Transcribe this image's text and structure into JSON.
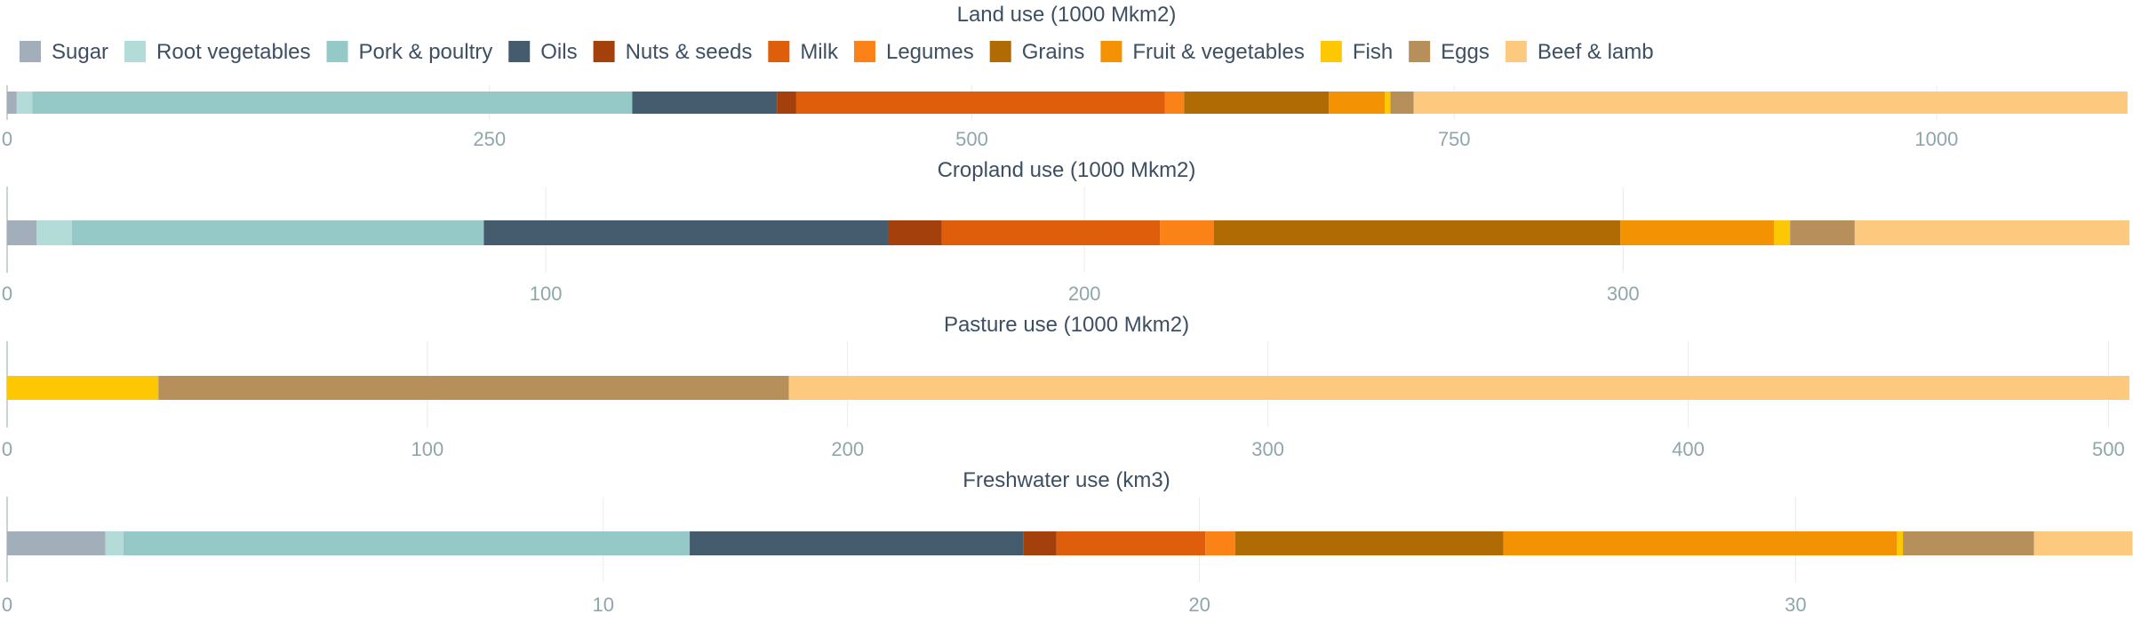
{
  "chart_data": {
    "type": "bar",
    "orientation": "horizontal",
    "stacked": true,
    "legend_position": "top-left",
    "grid": true,
    "categories": [
      "Sugar",
      "Root vegetables",
      "Pork & poultry",
      "Oils",
      "Nuts & seeds",
      "Milk",
      "Legumes",
      "Grains",
      "Fruit & vegetables",
      "Fish",
      "Eggs",
      "Beef & lamb"
    ],
    "colors": [
      "#a3aebb",
      "#b3dbd8",
      "#95c9c7",
      "#455b6e",
      "#a3400b",
      "#df5e0c",
      "#fb8217",
      "#b06b04",
      "#f39304",
      "#fdc704",
      "#b68f5a",
      "#fdc97e"
    ],
    "panels": [
      {
        "title": "Land use (1000 Mkm2)",
        "xlim": [
          0,
          1100
        ],
        "ticks": [
          0,
          250,
          500,
          750,
          1000
        ],
        "values": [
          5,
          8,
          311,
          75,
          10,
          191,
          10,
          75,
          29,
          3,
          12,
          370
        ]
      },
      {
        "title": "Cropland use (1000 Mkm2)",
        "xlim": [
          0,
          394
        ],
        "ticks": [
          0,
          100,
          200,
          300
        ],
        "values": [
          5.5,
          6.5,
          76.5,
          75,
          10,
          40.5,
          10,
          75.5,
          28.5,
          3,
          12,
          51
        ]
      },
      {
        "title": "Pasture use (1000 Mkm2)",
        "xlim": [
          0,
          505
        ],
        "ticks": [
          0,
          100,
          200,
          300,
          400,
          500
        ],
        "values": [
          0,
          0,
          0,
          0,
          0,
          0,
          0,
          0,
          0,
          36,
          150,
          319
        ]
      },
      {
        "title": "Freshwater use (km3)",
        "xlim": [
          0,
          35.6
        ],
        "ticks": [
          0,
          10,
          20,
          30
        ],
        "values": [
          1.65,
          0.3,
          9.5,
          5.6,
          0.55,
          2.5,
          0.5,
          4.5,
          6.6,
          0.1,
          2.2,
          1.65
        ]
      }
    ]
  }
}
